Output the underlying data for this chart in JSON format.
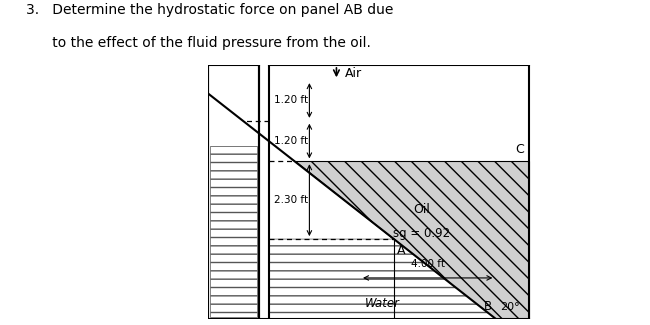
{
  "title_line1": "3.   Determine the hydrostatic force on panel AB due",
  "title_line2": "      to the effect of the fluid pressure from the oil.",
  "bg_color": "#ffffff",
  "fig_width": 6.5,
  "fig_height": 3.25,
  "dim_texts": {
    "d1": "1.20 ft",
    "d2": "1.20 ft",
    "d3": "2.30 ft",
    "d4": "4.00 ft"
  }
}
